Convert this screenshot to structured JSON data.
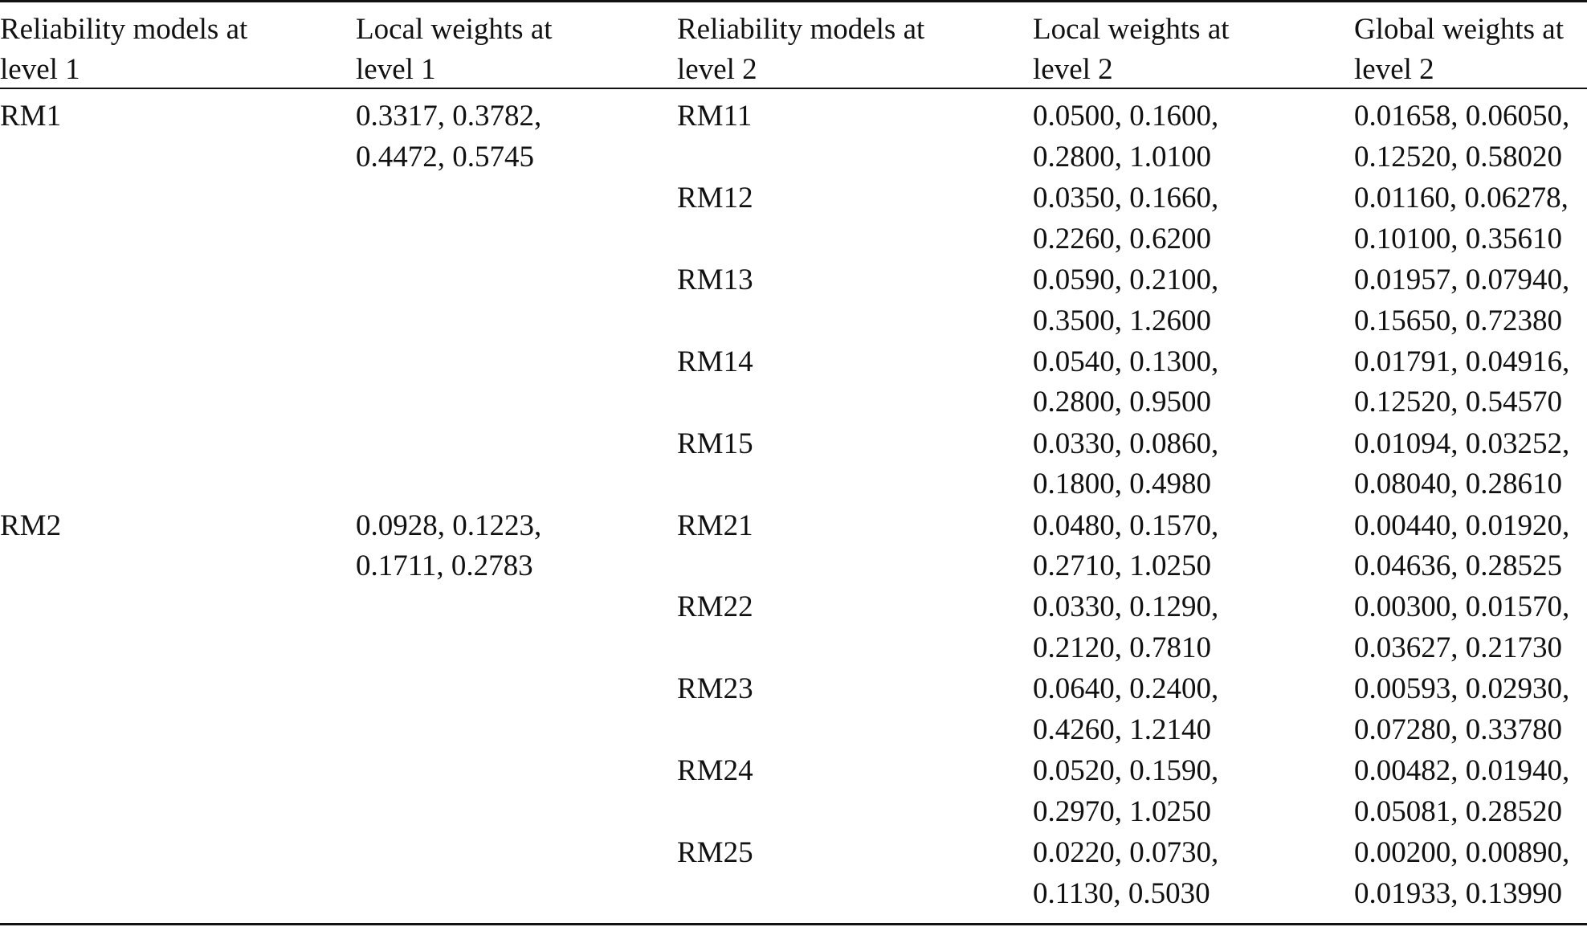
{
  "columns": [
    "Reliability models at\nlevel 1",
    "Local weights at\nlevel 1",
    "Reliability models at\nlevel 2",
    "Local weights at\nlevel 2",
    "Global weights at\nlevel 2"
  ],
  "groups": [
    {
      "model": "RM1",
      "local_weights": "0.3317, 0.3782,\n0.4472, 0.5745",
      "rows": [
        {
          "model": "RM11",
          "local": "0.0500, 0.1600,\n0.2800, 1.0100",
          "global": "0.01658, 0.06050,\n0.12520, 0.58020"
        },
        {
          "model": "RM12",
          "local": "0.0350, 0.1660,\n0.2260, 0.6200",
          "global": "0.01160, 0.06278,\n0.10100, 0.35610"
        },
        {
          "model": "RM13",
          "local": "0.0590, 0.2100,\n0.3500, 1.2600",
          "global": "0.01957, 0.07940,\n0.15650, 0.72380"
        },
        {
          "model": "RM14",
          "local": "0.0540, 0.1300,\n0.2800, 0.9500",
          "global": "0.01791, 0.04916,\n0.12520, 0.54570"
        },
        {
          "model": "RM15",
          "local": "0.0330, 0.0860,\n0.1800, 0.4980",
          "global": "0.01094, 0.03252,\n0.08040, 0.28610"
        }
      ]
    },
    {
      "model": "RM2",
      "local_weights": "0.0928, 0.1223,\n0.1711, 0.2783",
      "rows": [
        {
          "model": "RM21",
          "local": "0.0480, 0.1570,\n0.2710, 1.0250",
          "global": "0.00440, 0.01920,\n0.04636, 0.28525"
        },
        {
          "model": "RM22",
          "local": "0.0330, 0.1290,\n0.2120, 0.7810",
          "global": "0.00300, 0.01570,\n0.03627, 0.21730"
        },
        {
          "model": "RM23",
          "local": "0.0640, 0.2400,\n0.4260, 1.2140",
          "global": "0.00593, 0.02930,\n0.07280, 0.33780"
        },
        {
          "model": "RM24",
          "local": "0.0520, 0.1590,\n0.2970, 1.0250",
          "global": "0.00482, 0.01940,\n0.05081, 0.28520"
        },
        {
          "model": "RM25",
          "local": "0.0220, 0.0730,\n0.1130, 0.5030",
          "global": "0.00200, 0.00890,\n0.01933, 0.13990"
        }
      ]
    }
  ]
}
